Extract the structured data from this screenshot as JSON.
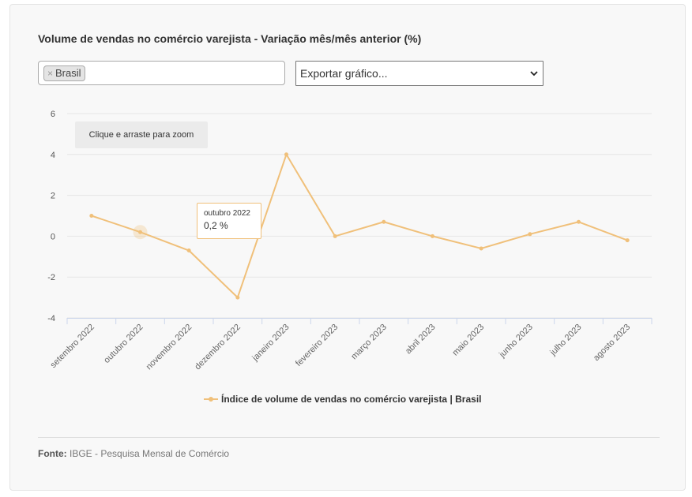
{
  "title": "Volume de vendas no comércio varejista - Variação mês/mês anterior (%)",
  "filter": {
    "tag_label": "Brasil",
    "remove_glyph": "×"
  },
  "export_select": {
    "selected": "Exportar gráfico..."
  },
  "zoom_hint": "Clique e arraste para zoom",
  "tooltip": {
    "date": "outubro 2022",
    "value": "0,2 %"
  },
  "legend": {
    "label": "Índice de volume de vendas no comércio varejista | Brasil"
  },
  "source": {
    "label": "Fonte:",
    "text": "IBGE - Pesquisa Mensal de Comércio"
  },
  "chart_data": {
    "type": "line",
    "categories": [
      "setembro 2022",
      "outubro 2022",
      "novembro 2022",
      "dezembro 2022",
      "janeiro 2023",
      "fevereiro 2023",
      "março 2023",
      "abril 2023",
      "maio 2023",
      "junho 2023",
      "julho 2023",
      "agosto 2023"
    ],
    "series": [
      {
        "name": "Índice de volume de vendas no comércio varejista | Brasil",
        "values": [
          1.0,
          0.2,
          -0.7,
          -3.0,
          4.0,
          0.0,
          0.7,
          0.0,
          -0.6,
          0.1,
          0.7,
          -0.2
        ],
        "color": "#f0c07a"
      }
    ],
    "yticks": [
      6,
      4,
      2,
      0,
      -2,
      -4
    ],
    "ylim": [
      -4,
      6
    ],
    "grid": true,
    "legend_position": "bottom-center",
    "highlighted_index": 1
  }
}
